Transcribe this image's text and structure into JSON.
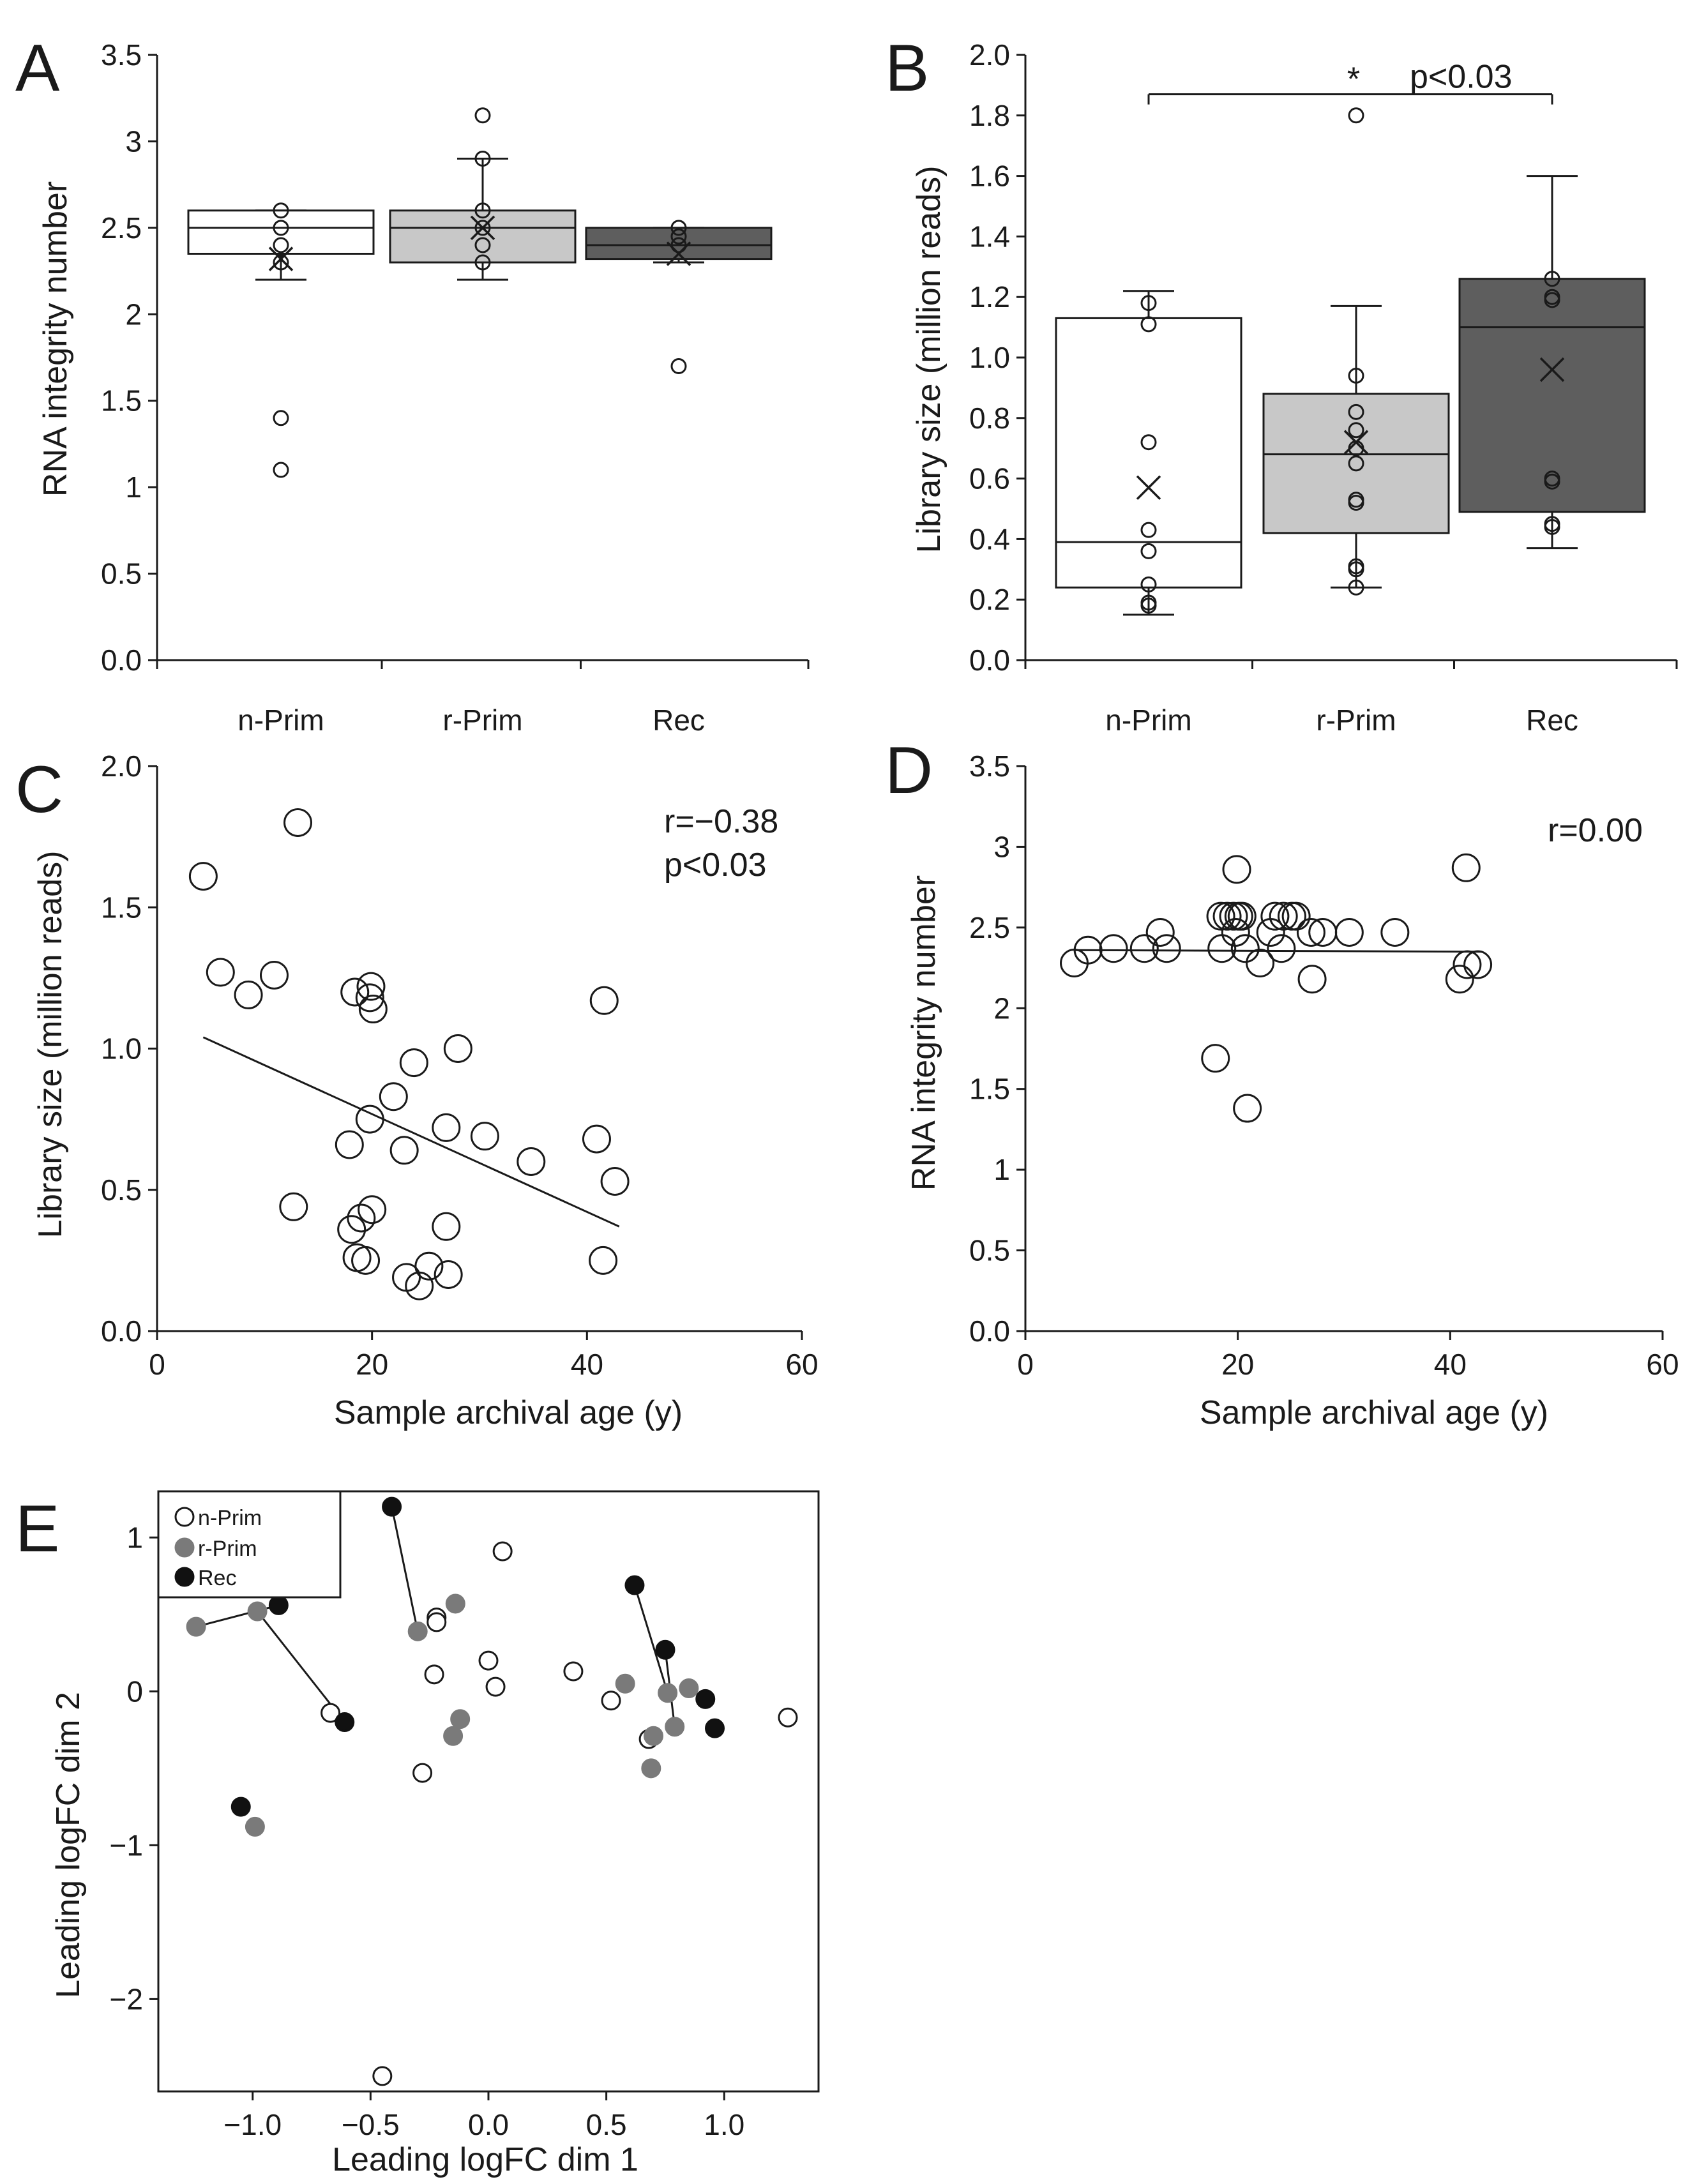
{
  "chart_data": [
    {
      "id": "A",
      "type": "box",
      "panel_label": "A",
      "ylabel": "RNA integrity number",
      "xlabel": "",
      "ylim": [
        0,
        3.5
      ],
      "yticks": [
        {
          "v": 0,
          "label": "0.0"
        },
        {
          "v": 0.5,
          "label": "0.5"
        },
        {
          "v": 1,
          "label": "1"
        },
        {
          "v": 1.5,
          "label": "1.5"
        },
        {
          "v": 2,
          "label": "2"
        },
        {
          "v": 2.5,
          "label": "2.5"
        },
        {
          "v": 3,
          "label": "3"
        },
        {
          "v": 3.5,
          "label": "3.5"
        }
      ],
      "categories": [
        "n-Prim",
        "r-Prim",
        "Rec"
      ],
      "fills": [
        "#ffffff",
        "#c8c8c8",
        "#5e5e5e"
      ],
      "boxes": [
        {
          "whisker_low": 2.2,
          "q1": 2.35,
          "median": 2.5,
          "q3": 2.6,
          "whisker_high": 2.6,
          "mean": 2.32,
          "points": [
            2.6,
            2.5,
            2.4,
            2.3,
            1.4,
            1.1
          ]
        },
        {
          "whisker_low": 2.2,
          "q1": 2.3,
          "median": 2.5,
          "q3": 2.6,
          "whisker_high": 2.9,
          "mean": 2.5,
          "points": [
            3.15,
            2.9,
            2.6,
            2.5,
            2.4,
            2.3
          ]
        },
        {
          "whisker_low": 2.3,
          "q1": 2.32,
          "median": 2.4,
          "q3": 2.5,
          "whisker_high": 2.5,
          "mean": 2.35,
          "points": [
            2.5,
            2.45,
            2.4,
            1.7
          ]
        }
      ]
    },
    {
      "id": "B",
      "type": "box",
      "panel_label": "B",
      "ylabel": "Library size (million reads)",
      "xlabel": "",
      "ylim": [
        0,
        2.0
      ],
      "yticks": [
        {
          "v": 0,
          "label": "0.0"
        },
        {
          "v": 0.2,
          "label": "0.2"
        },
        {
          "v": 0.4,
          "label": "0.4"
        },
        {
          "v": 0.6,
          "label": "0.6"
        },
        {
          "v": 0.8,
          "label": "0.8"
        },
        {
          "v": 1.0,
          "label": "1.0"
        },
        {
          "v": 1.2,
          "label": "1.2"
        },
        {
          "v": 1.4,
          "label": "1.4"
        },
        {
          "v": 1.6,
          "label": "1.6"
        },
        {
          "v": 1.8,
          "label": "1.8"
        },
        {
          "v": 2.0,
          "label": "2.0"
        }
      ],
      "categories": [
        "n-Prim",
        "r-Prim",
        "Rec"
      ],
      "fills": [
        "#ffffff",
        "#c8c8c8",
        "#5e5e5e"
      ],
      "boxes": [
        {
          "whisker_low": 0.15,
          "q1": 0.24,
          "median": 0.39,
          "q3": 1.13,
          "whisker_high": 1.22,
          "mean": 0.57,
          "points": [
            1.18,
            1.11,
            0.72,
            0.43,
            0.36,
            0.25,
            0.19,
            0.18
          ]
        },
        {
          "whisker_low": 0.24,
          "q1": 0.42,
          "median": 0.68,
          "q3": 0.88,
          "whisker_high": 1.17,
          "mean": 0.72,
          "points": [
            1.8,
            0.94,
            0.82,
            0.76,
            0.7,
            0.65,
            0.53,
            0.52,
            0.31,
            0.3,
            0.24
          ]
        },
        {
          "whisker_low": 0.37,
          "q1": 0.49,
          "median": 1.1,
          "q3": 1.26,
          "whisker_high": 1.6,
          "mean": 0.96,
          "points": [
            1.26,
            1.2,
            1.19,
            0.6,
            0.59,
            0.45,
            0.44
          ]
        }
      ],
      "significance": {
        "from": 0,
        "to": 2,
        "y": 1.87,
        "star": "*",
        "label": "p<0.03"
      }
    },
    {
      "id": "C",
      "type": "scatter",
      "panel_label": "C",
      "xlabel": "Sample archival age (y)",
      "ylabel": "Library size (million reads)",
      "xlim": [
        0,
        60
      ],
      "ylim": [
        0,
        2.0
      ],
      "xticks": [
        {
          "v": 0,
          "label": "0"
        },
        {
          "v": 20,
          "label": "20"
        },
        {
          "v": 40,
          "label": "40"
        },
        {
          "v": 60,
          "label": "60"
        }
      ],
      "yticks": [
        {
          "v": 0,
          "label": "0.0"
        },
        {
          "v": 0.5,
          "label": "0.5"
        },
        {
          "v": 1.0,
          "label": "1.0"
        },
        {
          "v": 1.5,
          "label": "1.5"
        },
        {
          "v": 2.0,
          "label": "2.0"
        }
      ],
      "points": [
        [
          4.3,
          1.61
        ],
        [
          5.9,
          1.27
        ],
        [
          8.5,
          1.19
        ],
        [
          10.9,
          1.26
        ],
        [
          13.1,
          1.8
        ],
        [
          12.7,
          0.44
        ],
        [
          18.4,
          1.2
        ],
        [
          19.9,
          1.22
        ],
        [
          20.1,
          1.14
        ],
        [
          19.8,
          1.18
        ],
        [
          18.1,
          0.36
        ],
        [
          18.6,
          0.26
        ],
        [
          19.0,
          0.4
        ],
        [
          19.4,
          0.25
        ],
        [
          19.8,
          0.75
        ],
        [
          20.0,
          0.43
        ],
        [
          17.9,
          0.66
        ],
        [
          22.0,
          0.83
        ],
        [
          23.0,
          0.64
        ],
        [
          23.2,
          0.19
        ],
        [
          23.9,
          0.95
        ],
        [
          24.4,
          0.16
        ],
        [
          25.3,
          0.23
        ],
        [
          26.9,
          0.37
        ],
        [
          26.9,
          0.72
        ],
        [
          27.1,
          0.2
        ],
        [
          28.0,
          1.0
        ],
        [
          30.5,
          0.69
        ],
        [
          34.8,
          0.6
        ],
        [
          40.9,
          0.68
        ],
        [
          41.6,
          1.17
        ],
        [
          42.6,
          0.53
        ],
        [
          41.5,
          0.25
        ]
      ],
      "fit": {
        "x1": 4.3,
        "y1": 1.04,
        "x2": 43.0,
        "y2": 0.37
      },
      "annotations": [
        "r=−0.38",
        "p<0.03"
      ]
    },
    {
      "id": "D",
      "type": "scatter",
      "panel_label": "D",
      "xlabel": "Sample archival age (y)",
      "ylabel": "RNA integrity number",
      "xlim": [
        0,
        60
      ],
      "ylim": [
        0,
        3.5
      ],
      "xticks": [
        {
          "v": 0,
          "label": "0"
        },
        {
          "v": 20,
          "label": "20"
        },
        {
          "v": 40,
          "label": "40"
        },
        {
          "v": 60,
          "label": "60"
        }
      ],
      "yticks": [
        {
          "v": 0,
          "label": "0.0"
        },
        {
          "v": 0.5,
          "label": "0.5"
        },
        {
          "v": 1,
          "label": "1"
        },
        {
          "v": 1.5,
          "label": "1.5"
        },
        {
          "v": 2,
          "label": "2"
        },
        {
          "v": 2.5,
          "label": "2.5"
        },
        {
          "v": 3,
          "label": "3"
        },
        {
          "v": 3.5,
          "label": "3.5"
        }
      ],
      "points": [
        [
          4.6,
          2.28
        ],
        [
          5.9,
          2.36
        ],
        [
          8.3,
          2.37
        ],
        [
          11.2,
          2.37
        ],
        [
          12.7,
          2.47
        ],
        [
          13.3,
          2.37
        ],
        [
          17.9,
          1.69
        ],
        [
          18.4,
          2.57
        ],
        [
          18.5,
          2.37
        ],
        [
          19.0,
          2.57
        ],
        [
          19.6,
          2.57
        ],
        [
          19.9,
          2.86
        ],
        [
          19.8,
          2.47
        ],
        [
          20.1,
          2.57
        ],
        [
          20.4,
          2.57
        ],
        [
          20.7,
          2.37
        ],
        [
          20.9,
          1.38
        ],
        [
          22.1,
          2.28
        ],
        [
          23.1,
          2.47
        ],
        [
          23.5,
          2.57
        ],
        [
          24.3,
          2.57
        ],
        [
          25.1,
          2.57
        ],
        [
          25.5,
          2.57
        ],
        [
          24.1,
          2.37
        ],
        [
          26.9,
          2.47
        ],
        [
          27.0,
          2.18
        ],
        [
          28.0,
          2.47
        ],
        [
          30.5,
          2.47
        ],
        [
          34.8,
          2.47
        ],
        [
          40.9,
          2.18
        ],
        [
          41.5,
          2.87
        ],
        [
          41.6,
          2.27
        ],
        [
          42.6,
          2.27
        ]
      ],
      "fit": {
        "x1": 4.6,
        "y1": 2.36,
        "x2": 43.0,
        "y2": 2.35
      },
      "annotations": [
        "r=0.00"
      ]
    },
    {
      "id": "E",
      "type": "scatter",
      "panel_label": "E",
      "xlabel": "Leading logFC dim 1",
      "ylabel": "Leading logFC dim 2",
      "xlim": [
        -1.4,
        1.4
      ],
      "ylim": [
        -2.6,
        1.3
      ],
      "xticks": [
        {
          "v": -1.0,
          "label": "−1.0"
        },
        {
          "v": -0.5,
          "label": "−0.5"
        },
        {
          "v": 0.0,
          "label": "0.0"
        },
        {
          "v": 0.5,
          "label": "0.5"
        },
        {
          "v": 1.0,
          "label": "1.0"
        }
      ],
      "yticks": [
        {
          "v": 1,
          "label": "1"
        },
        {
          "v": 0,
          "label": "0"
        },
        {
          "v": -1,
          "label": "−1"
        },
        {
          "v": -2,
          "label": "−2"
        }
      ],
      "legend": [
        {
          "label": "n-Prim",
          "color": "#ffffff",
          "stroke": "#1a1a1a"
        },
        {
          "label": "r-Prim",
          "color": "#7a7a7a",
          "stroke": "#7a7a7a"
        },
        {
          "label": "Rec",
          "color": "#111111",
          "stroke": "#111111"
        }
      ],
      "series": [
        {
          "name": "n-Prim",
          "points": [
            [
              0.06,
              0.91
            ],
            [
              -0.22,
              0.48
            ],
            [
              -0.22,
              0.45
            ],
            [
              -0.23,
              0.11
            ],
            [
              0.0,
              0.2
            ],
            [
              0.03,
              0.03
            ],
            [
              0.36,
              0.13
            ],
            [
              0.52,
              -0.06
            ],
            [
              0.68,
              -0.31
            ],
            [
              1.27,
              -0.17
            ],
            [
              -0.67,
              -0.14
            ],
            [
              -0.28,
              -0.53
            ],
            [
              -0.45,
              -2.5
            ]
          ]
        },
        {
          "name": "r-Prim",
          "points": [
            [
              -1.24,
              0.42
            ],
            [
              -0.98,
              0.52
            ],
            [
              -0.3,
              0.39
            ],
            [
              -0.14,
              0.57
            ],
            [
              -0.12,
              -0.18
            ],
            [
              -0.15,
              -0.29
            ],
            [
              0.58,
              0.05
            ],
            [
              0.7,
              -0.29
            ],
            [
              0.69,
              -0.5
            ],
            [
              0.76,
              -0.01
            ],
            [
              0.85,
              0.02
            ],
            [
              0.79,
              -0.23
            ],
            [
              -0.99,
              -0.88
            ]
          ]
        },
        {
          "name": "Rec",
          "points": [
            [
              -0.41,
              1.2
            ],
            [
              -0.89,
              0.56
            ],
            [
              -0.61,
              -0.2
            ],
            [
              0.62,
              0.69
            ],
            [
              0.75,
              0.27
            ],
            [
              0.92,
              -0.05
            ],
            [
              0.96,
              -0.24
            ],
            [
              -1.05,
              -0.75
            ]
          ]
        }
      ],
      "pair_lines": [
        {
          "x1": -1.24,
          "y1": 0.42,
          "x2": -0.89,
          "y2": 0.56
        },
        {
          "x1": -0.98,
          "y1": 0.52,
          "x2": -0.61,
          "y2": -0.2
        },
        {
          "x1": -0.41,
          "y1": 1.2,
          "x2": -0.3,
          "y2": 0.39
        },
        {
          "x1": 0.62,
          "y1": 0.69,
          "x2": 0.76,
          "y2": -0.01
        },
        {
          "x1": 0.75,
          "y1": 0.27,
          "x2": 0.79,
          "y2": -0.23
        }
      ]
    }
  ]
}
